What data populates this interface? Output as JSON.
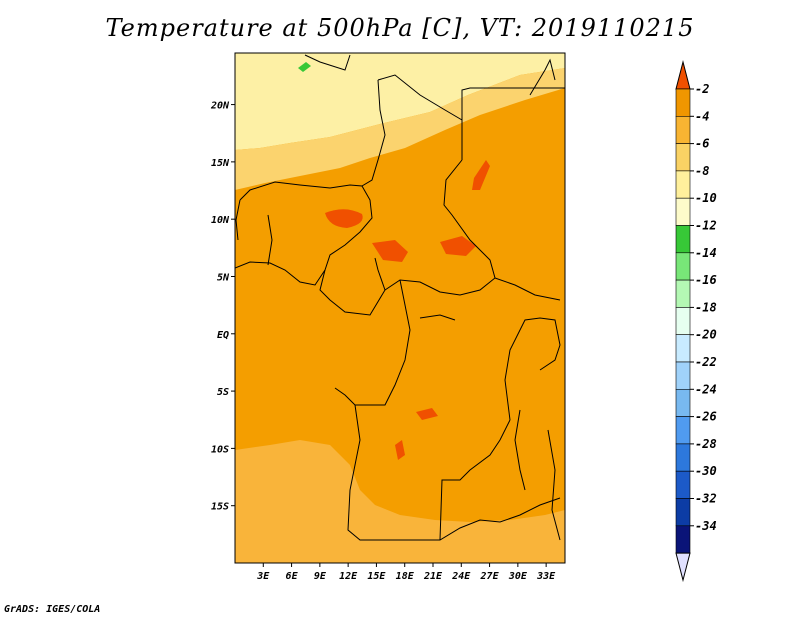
{
  "chart_data": {
    "type": "heatmap",
    "title": "Temperature at 500hPa [C], VT: 2019110215",
    "credit": "GrADS: IGES/COLA",
    "xlim": [
      0,
      35
    ],
    "ylim": [
      -20,
      24.5
    ],
    "x_ticks": [
      {
        "value": 3,
        "label": "3E"
      },
      {
        "value": 6,
        "label": "6E"
      },
      {
        "value": 9,
        "label": "9E"
      },
      {
        "value": 12,
        "label": "12E"
      },
      {
        "value": 15,
        "label": "15E"
      },
      {
        "value": 18,
        "label": "18E"
      },
      {
        "value": 21,
        "label": "21E"
      },
      {
        "value": 24,
        "label": "24E"
      },
      {
        "value": 27,
        "label": "27E"
      },
      {
        "value": 30,
        "label": "30E"
      },
      {
        "value": 33,
        "label": "33E"
      }
    ],
    "y_ticks": [
      {
        "value": 20,
        "label": "20N"
      },
      {
        "value": 15,
        "label": "15N"
      },
      {
        "value": 10,
        "label": "10N"
      },
      {
        "value": 5,
        "label": "5N"
      },
      {
        "value": 0,
        "label": "EQ"
      },
      {
        "value": -5,
        "label": "5S"
      },
      {
        "value": -10,
        "label": "10S"
      },
      {
        "value": -15,
        "label": "15S"
      }
    ],
    "colorbar": {
      "labels": [
        "-2",
        "-4",
        "-6",
        "-8",
        "-10",
        "-12",
        "-14",
        "-16",
        "-18",
        "-20",
        "-22",
        "-24",
        "-26",
        "-28",
        "-30",
        "-32",
        "-34"
      ],
      "colors": [
        "#f05000",
        "#f09600",
        "#f8b432",
        "#fad264",
        "#fff09c",
        "#fdfbca",
        "#37c837",
        "#78e678",
        "#b4f8b4",
        "#e6fff0",
        "#c8ebff",
        "#a0d2fa",
        "#78b9f0",
        "#509bf0",
        "#2d78dc",
        "#1c5ac8",
        "#0c3ca5",
        "#0a1478"
      ],
      "over_color": "#f05000",
      "under_color": "#e1e1ff"
    },
    "field": {
      "base_color": "#f49e00",
      "regions": [
        {
          "name": "north-sahara-cold",
          "level": "-10 to -12",
          "color": "#fdf0a5"
        },
        {
          "name": "sahel-band",
          "level": "-8 to -10",
          "color": "#fbd36e"
        },
        {
          "name": "southwest-band",
          "level": "-6 to -8",
          "color": "#f9b43a"
        },
        {
          "name": "warm-patches",
          "level": "-2 to -4",
          "color": "#f05000"
        },
        {
          "name": "green-spot",
          "level": "-12 to -14",
          "color": "#37c837"
        }
      ]
    }
  }
}
